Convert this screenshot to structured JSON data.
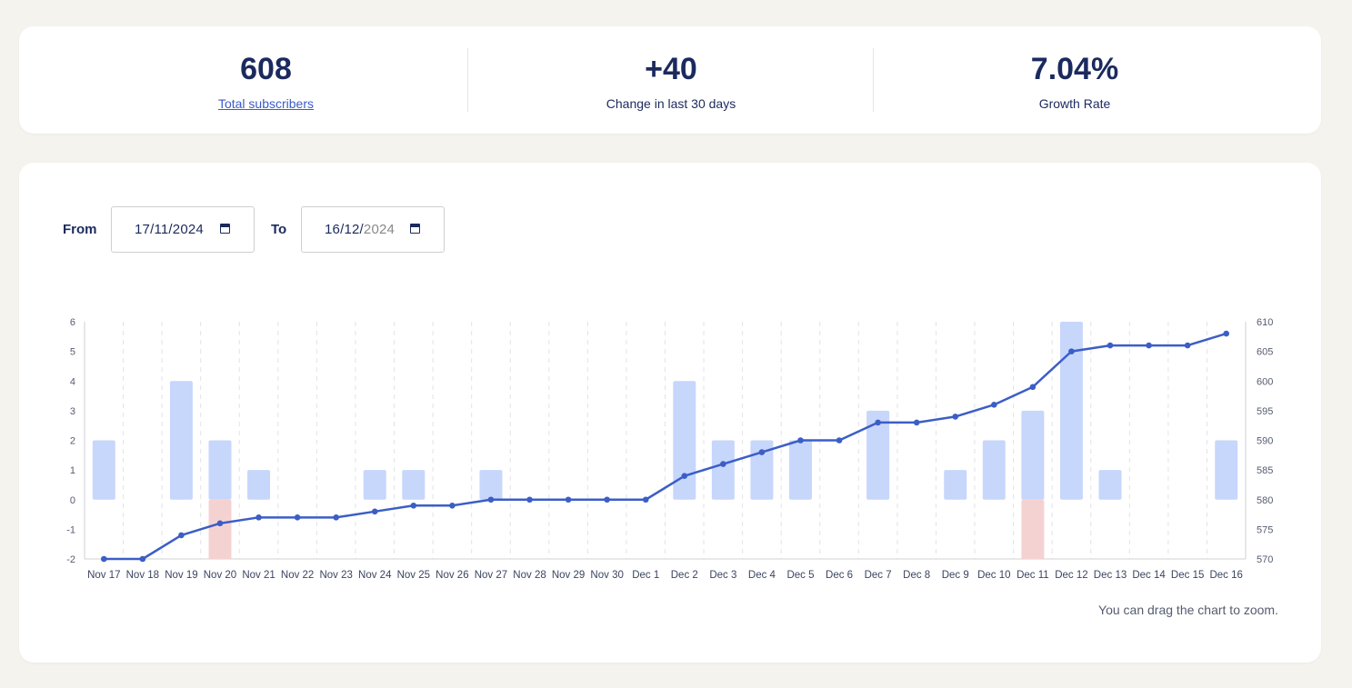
{
  "stats": [
    {
      "value": "608",
      "label": "Total subscribers",
      "is_link": true
    },
    {
      "value": "+40",
      "label": "Change in last 30 days",
      "is_link": false
    },
    {
      "value": "7.04%",
      "label": "Growth Rate",
      "is_link": false
    }
  ],
  "filters": {
    "from_label": "From",
    "from_value": "17/11/2024",
    "to_label": "To",
    "to_value_main": "16/12/",
    "to_value_dim": "2024"
  },
  "zoom_hint": "You can drag the chart to zoom.",
  "colors": {
    "text": "#1b2a5e",
    "link": "#3b5bc8",
    "line": "#3b5ec6",
    "bar_positive": "#c7d6fb",
    "bar_negative": "#f5d2d2",
    "background": "#f4f3ee"
  },
  "icons": [
    "calendar-icon"
  ],
  "chart_data": {
    "type": "bar+line",
    "categories": [
      "Nov 17",
      "Nov 18",
      "Nov 19",
      "Nov 20",
      "Nov 21",
      "Nov 22",
      "Nov 23",
      "Nov 24",
      "Nov 25",
      "Nov 26",
      "Nov 27",
      "Nov 28",
      "Nov 29",
      "Nov 30",
      "Dec 1",
      "Dec 2",
      "Dec 3",
      "Dec 4",
      "Dec 5",
      "Dec 6",
      "Dec 7",
      "Dec 8",
      "Dec 9",
      "Dec 10",
      "Dec 11",
      "Dec 12",
      "Dec 13",
      "Dec 14",
      "Dec 15",
      "Dec 16"
    ],
    "series": [
      {
        "values": [
          2,
          0,
          4,
          2,
          1,
          0,
          0,
          1,
          1,
          0,
          1,
          0,
          0,
          0,
          0,
          4,
          2,
          2,
          2,
          0,
          3,
          0,
          1,
          2,
          3,
          6,
          1,
          0,
          0,
          2
        ],
        "axis": "left",
        "kind": "bar"
      },
      {
        "values": [
          0,
          0,
          0,
          -2,
          0,
          0,
          0,
          0,
          0,
          0,
          0,
          0,
          0,
          0,
          0,
          0,
          0,
          0,
          0,
          0,
          0,
          0,
          0,
          0,
          -2,
          0,
          0,
          0,
          0,
          0
        ],
        "axis": "left",
        "kind": "bar"
      },
      {
        "values": [
          570,
          570,
          574,
          576,
          577,
          577,
          577,
          578,
          579,
          579,
          580,
          580,
          580,
          580,
          580,
          584,
          586,
          588,
          590,
          590,
          593,
          593,
          594,
          596,
          599,
          605,
          606,
          606,
          606,
          608
        ],
        "axis": "right",
        "kind": "line"
      }
    ],
    "left_axis": {
      "ylim": [
        -2,
        6
      ],
      "ticks": [
        "-2",
        "-1",
        "0",
        "1",
        "2",
        "3",
        "4",
        "5",
        "6"
      ]
    },
    "right_axis": {
      "ylim": [
        570,
        610
      ],
      "ticks": [
        "570",
        "575",
        "580",
        "585",
        "590",
        "595",
        "600",
        "605",
        "610"
      ]
    },
    "grid": "vertical dashed"
  }
}
